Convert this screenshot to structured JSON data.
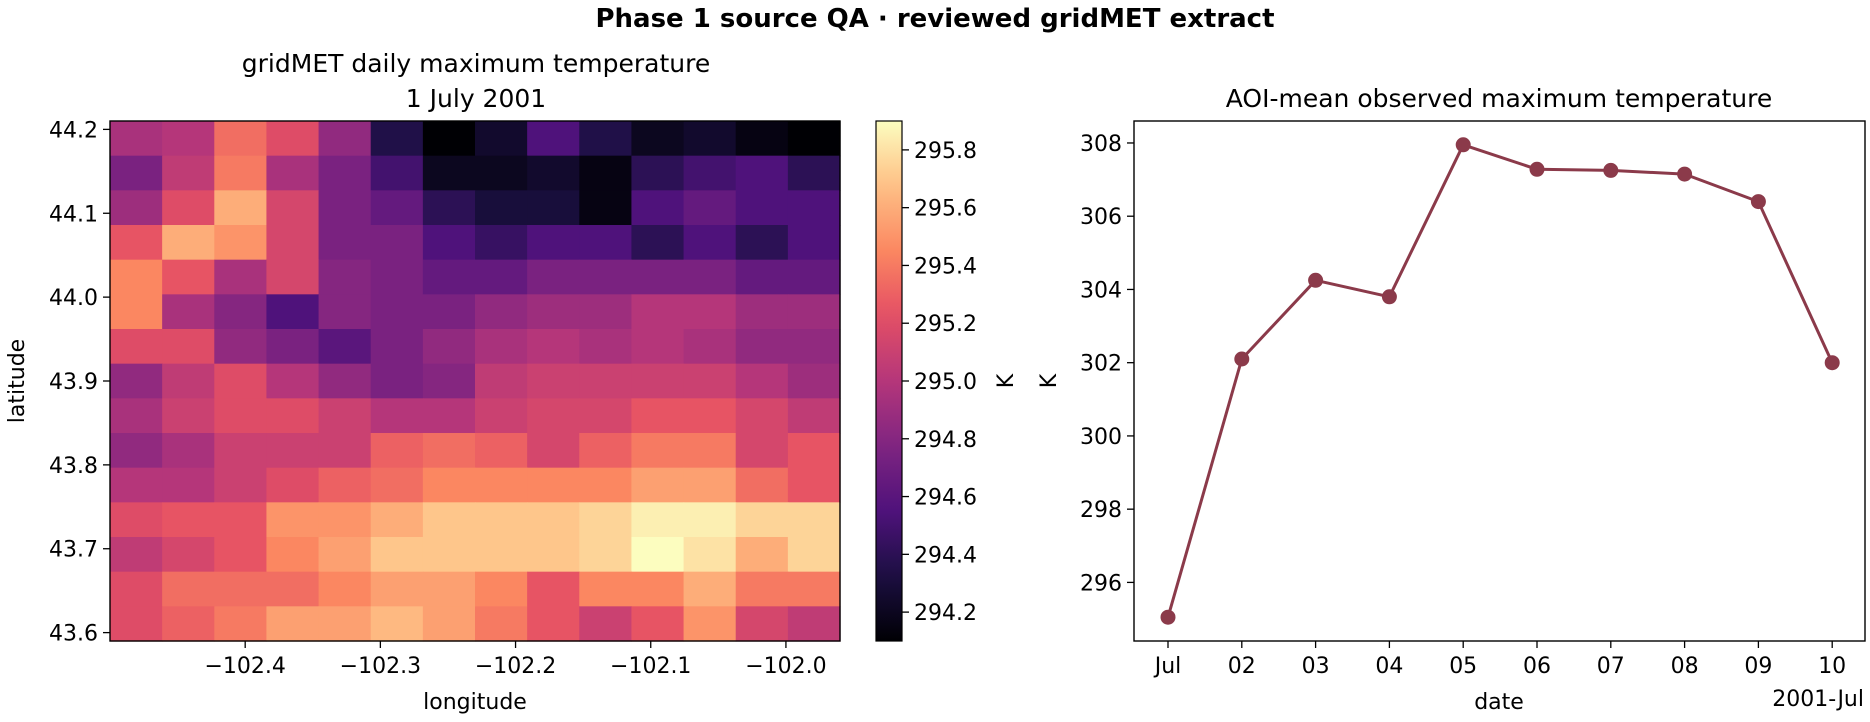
{
  "figure": {
    "suptitle": "Phase 1 source QA · reviewed gridMET extract"
  },
  "chart_data": [
    {
      "type": "heatmap",
      "title_line1": "gridMET daily maximum temperature",
      "title_line2": "1 July 2001",
      "xlabel": "longitude",
      "ylabel": "latitude",
      "colormap": "magma",
      "colorbar_label": "K",
      "color_range": [
        294.1,
        295.9
      ],
      "x_ticks": [
        -102.4,
        -102.3,
        -102.2,
        -102.1,
        -102.0
      ],
      "x_tick_labels": [
        "−102.4",
        "−102.3",
        "−102.2",
        "−102.1",
        "−102.0"
      ],
      "y_ticks": [
        43.6,
        43.7,
        43.8,
        43.9,
        44.0,
        44.1,
        44.2
      ],
      "y_tick_labels": [
        "43.6",
        "43.7",
        "43.8",
        "43.9",
        "44.0",
        "44.1",
        "44.2"
      ],
      "colorbar_ticks": [
        294.2,
        294.4,
        294.6,
        294.8,
        295.0,
        295.2,
        295.4,
        295.6,
        295.8
      ],
      "colorbar_tick_labels": [
        "294.2",
        "294.4",
        "294.6",
        "294.8",
        "295.0",
        "295.2",
        "295.4",
        "295.6",
        "295.8"
      ],
      "lon_range": [
        -102.5,
        -101.96
      ],
      "lat_range": [
        43.59,
        44.21
      ],
      "cell_size_deg": 0.041667,
      "grid_rows_north_to_south": [
        [
          294.95,
          295.0,
          295.35,
          295.2,
          294.85,
          294.35,
          294.1,
          294.25,
          294.55,
          294.35,
          294.2,
          294.25,
          294.15,
          294.1
        ],
        [
          294.75,
          295.05,
          295.4,
          294.95,
          294.75,
          294.5,
          294.2,
          294.2,
          294.25,
          294.15,
          294.4,
          294.5,
          294.55,
          294.4
        ],
        [
          294.9,
          295.2,
          295.6,
          295.15,
          294.75,
          294.65,
          294.4,
          294.3,
          294.3,
          294.15,
          294.55,
          294.65,
          294.55,
          294.55
        ],
        [
          295.25,
          295.6,
          295.5,
          295.15,
          294.75,
          294.75,
          294.55,
          294.45,
          294.55,
          294.55,
          294.4,
          294.55,
          294.4,
          294.55
        ],
        [
          295.45,
          295.25,
          294.95,
          295.15,
          294.8,
          294.75,
          294.65,
          294.65,
          294.75,
          294.75,
          294.75,
          294.75,
          294.65,
          294.65
        ],
        [
          295.45,
          294.95,
          294.8,
          294.55,
          294.8,
          294.75,
          294.75,
          294.85,
          294.9,
          294.9,
          295.0,
          295.0,
          294.9,
          294.9
        ],
        [
          295.2,
          295.2,
          294.85,
          294.75,
          294.6,
          294.75,
          294.85,
          294.95,
          295.0,
          294.95,
          295.0,
          294.95,
          294.85,
          294.85
        ],
        [
          294.85,
          295.05,
          295.2,
          295.0,
          294.85,
          294.75,
          294.8,
          295.05,
          295.1,
          295.1,
          295.1,
          295.1,
          295.0,
          294.9
        ],
        [
          294.95,
          295.1,
          295.2,
          295.2,
          295.1,
          295.0,
          295.0,
          295.1,
          295.15,
          295.15,
          295.25,
          295.25,
          295.15,
          295.05
        ],
        [
          294.85,
          294.95,
          295.1,
          295.1,
          295.1,
          295.3,
          295.35,
          295.3,
          295.15,
          295.3,
          295.4,
          295.4,
          295.15,
          295.25
        ],
        [
          295.0,
          295.0,
          295.1,
          295.2,
          295.3,
          295.35,
          295.45,
          295.45,
          295.45,
          295.45,
          295.55,
          295.55,
          295.35,
          295.25
        ],
        [
          295.2,
          295.25,
          295.25,
          295.5,
          295.5,
          295.6,
          295.7,
          295.7,
          295.7,
          295.75,
          295.85,
          295.85,
          295.75,
          295.75
        ],
        [
          295.05,
          295.15,
          295.25,
          295.45,
          295.55,
          295.7,
          295.7,
          295.7,
          295.7,
          295.75,
          295.95,
          295.8,
          295.6,
          295.75
        ],
        [
          295.2,
          295.35,
          295.35,
          295.35,
          295.45,
          295.55,
          295.55,
          295.45,
          295.25,
          295.45,
          295.45,
          295.6,
          295.4,
          295.4
        ],
        [
          295.2,
          295.3,
          295.4,
          295.55,
          295.55,
          295.65,
          295.55,
          295.4,
          295.25,
          295.1,
          295.25,
          295.5,
          295.15,
          295.05
        ]
      ]
    },
    {
      "type": "line",
      "title": "AOI-mean observed maximum temperature",
      "xlabel": "date",
      "ylabel": "K",
      "x": [
        "2001-07-01",
        "2001-07-02",
        "2001-07-03",
        "2001-07-04",
        "2001-07-05",
        "2001-07-06",
        "2001-07-07",
        "2001-07-08",
        "2001-07-09",
        "2001-07-10"
      ],
      "x_tick_labels": [
        "Jul",
        "02",
        "03",
        "04",
        "05",
        "06",
        "07",
        "08",
        "09",
        "10"
      ],
      "x_offset_label": "2001-Jul",
      "y": [
        295.05,
        302.1,
        304.25,
        303.8,
        307.95,
        307.28,
        307.25,
        307.15,
        306.4,
        302.0
      ],
      "y_ticks": [
        296,
        298,
        300,
        302,
        304,
        306,
        308
      ],
      "y_tick_labels": [
        "296",
        "298",
        "300",
        "302",
        "304",
        "306",
        "308"
      ],
      "ylim": [
        294.4,
        308.6
      ],
      "line_color": "#8b3a4a"
    }
  ]
}
